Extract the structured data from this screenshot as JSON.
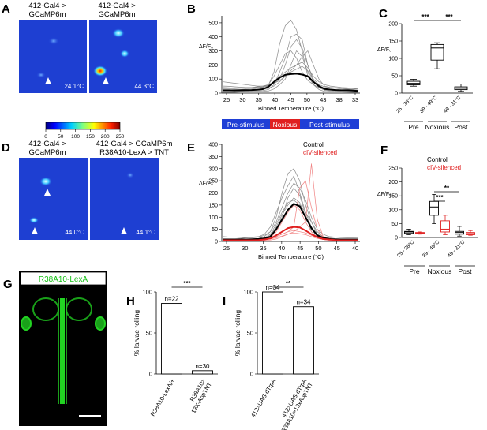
{
  "panels": {
    "A": {
      "letter": "A",
      "left_title": [
        "412-Gal4 >",
        "GCaMP6m"
      ],
      "right_title": [
        "412-Gal4 >",
        "GCaMP6m"
      ],
      "left_temp": "24.1°C",
      "right_temp": "44.3°C"
    },
    "colorbar": {
      "ticks": [
        "0",
        "50",
        "100",
        "150",
        "200",
        "250"
      ]
    },
    "B": {
      "letter": "B"
    },
    "C": {
      "letter": "C"
    },
    "D": {
      "letter": "D",
      "left_title": [
        "412-Gal4 >",
        "GCaMP6m"
      ],
      "right_title": [
        "412-Gal4 > GCaMP6m",
        "R38A10-LexA > TNT"
      ],
      "left_temp": "44.0°C",
      "right_temp": "44.1°C"
    },
    "E": {
      "letter": "E"
    },
    "F": {
      "letter": "F"
    },
    "G": {
      "letter": "G",
      "label": "R38A10-LexA"
    },
    "H": {
      "letter": "H"
    },
    "I": {
      "letter": "I"
    }
  },
  "stimulus_bar": {
    "segments": [
      {
        "label": "Pre-stimulus",
        "color": "#1f3fd6"
      },
      {
        "label": "Noxious",
        "color": "#e02020"
      },
      {
        "label": "Post-stimulus",
        "color": "#1f3fd6"
      }
    ]
  },
  "colors": {
    "control": "#000000",
    "silenced": "#e02020",
    "stimulus_blue": "#1f3fd6"
  },
  "chart_data": [
    {
      "panel": "B",
      "type": "line",
      "xlabel": "Binned Temperature (°C)",
      "ylabel": "ΔF/F₀",
      "x_ticks": [
        "25",
        "30",
        "35",
        "40",
        "45",
        "50",
        "43",
        "38",
        "33"
      ],
      "y_ticks": [
        "0",
        "100",
        "200",
        "300",
        "400",
        "500"
      ],
      "ylim": [
        0,
        550
      ],
      "series": [
        {
          "role": "mean",
          "values": [
            20,
            20,
            19,
            20,
            21,
            22,
            24,
            28,
            45,
            80,
            110,
            130,
            135,
            138,
            132,
            120,
            80,
            50,
            30,
            25,
            22,
            20,
            20,
            18,
            15
          ]
        },
        {
          "role": "individual",
          "values": [
            30,
            30,
            32,
            35,
            35,
            40,
            45,
            50,
            60,
            120,
            200,
            280,
            300,
            250,
            150,
            90,
            60,
            40,
            30,
            25,
            22,
            20,
            20,
            18,
            15
          ]
        },
        {
          "role": "individual",
          "values": [
            20,
            22,
            25,
            25,
            28,
            30,
            35,
            40,
            55,
            150,
            350,
            480,
            520,
            450,
            300,
            120,
            60,
            40,
            30,
            28,
            25,
            22,
            20,
            18,
            15
          ]
        },
        {
          "role": "individual",
          "values": [
            50,
            48,
            45,
            42,
            40,
            40,
            40,
            45,
            60,
            80,
            120,
            150,
            180,
            200,
            260,
            300,
            200,
            100,
            50,
            40,
            35,
            30,
            28,
            25,
            22
          ]
        },
        {
          "role": "individual",
          "values": [
            10,
            10,
            10,
            12,
            12,
            15,
            15,
            18,
            25,
            60,
            150,
            250,
            400,
            420,
            380,
            200,
            80,
            40,
            20,
            15,
            12,
            10,
            10,
            10,
            10
          ]
        },
        {
          "role": "individual",
          "values": [
            80,
            75,
            70,
            65,
            60,
            55,
            50,
            50,
            55,
            70,
            90,
            120,
            160,
            200,
            220,
            180,
            120,
            80,
            60,
            50,
            45,
            40,
            38,
            35,
            30
          ]
        },
        {
          "role": "individual",
          "values": [
            5,
            5,
            5,
            8,
            8,
            10,
            10,
            12,
            15,
            30,
            60,
            100,
            200,
            300,
            260,
            150,
            60,
            25,
            12,
            10,
            8,
            8,
            6,
            5,
            5
          ]
        },
        {
          "role": "individual",
          "values": [
            40,
            38,
            36,
            35,
            35,
            36,
            38,
            42,
            50,
            70,
            100,
            200,
            330,
            380,
            320,
            200,
            100,
            60,
            45,
            40,
            38,
            35,
            32,
            30,
            30
          ]
        },
        {
          "role": "individual",
          "values": [
            15,
            15,
            15,
            18,
            18,
            20,
            22,
            25,
            35,
            50,
            80,
            120,
            150,
            170,
            190,
            160,
            90,
            40,
            25,
            20,
            18,
            16,
            15,
            15,
            14
          ]
        }
      ]
    },
    {
      "panel": "C",
      "type": "box",
      "ylabel": "ΔF/F₀",
      "ylim": [
        0,
        200
      ],
      "y_ticks": [
        "0",
        "50",
        "100",
        "150",
        "200"
      ],
      "categories": [
        "25 - 38°C",
        "39 - 49°C",
        "48 - 31°C"
      ],
      "groups": [
        "Pre",
        "Noxious",
        "Post"
      ],
      "boxes": [
        {
          "color": "#000000",
          "min": 20,
          "q1": 24,
          "median": 28,
          "q3": 34,
          "max": 40
        },
        {
          "color": "#000000",
          "min": 70,
          "q1": 95,
          "median": 130,
          "q3": 140,
          "max": 145
        },
        {
          "color": "#000000",
          "min": 5,
          "q1": 10,
          "median": 14,
          "q3": 18,
          "max": 26
        }
      ],
      "significance": [
        {
          "from": 0,
          "to": 1,
          "label": "***"
        },
        {
          "from": 1,
          "to": 2,
          "label": "***"
        }
      ]
    },
    {
      "panel": "E",
      "type": "line",
      "xlabel": "Binned Temperature (°C)",
      "ylabel": "ΔF/F₀",
      "x_ticks": [
        "25",
        "30",
        "35",
        "40",
        "45",
        "50",
        "45",
        "40"
      ],
      "y_ticks": [
        "0",
        "50",
        "100",
        "150",
        "200",
        "250",
        "300",
        "350",
        "400"
      ],
      "ylim": [
        0,
        400
      ],
      "legend": [
        "Control",
        "cIV-silenced"
      ],
      "series": [
        {
          "role": "control-mean",
          "values": [
            8,
            8,
            8,
            8,
            8,
            9,
            10,
            12,
            20,
            50,
            90,
            130,
            155,
            145,
            100,
            55,
            25,
            15,
            10,
            8,
            8,
            8,
            8,
            8
          ]
        },
        {
          "role": "silenced-mean",
          "values": [
            5,
            5,
            5,
            5,
            5,
            5,
            6,
            8,
            12,
            25,
            40,
            55,
            60,
            58,
            45,
            30,
            18,
            10,
            8,
            6,
            5,
            5,
            5,
            5
          ]
        },
        {
          "role": "control",
          "values": [
            5,
            5,
            6,
            6,
            8,
            10,
            12,
            20,
            40,
            100,
            200,
            280,
            300,
            250,
            150,
            80,
            30,
            15,
            10,
            8,
            6,
            5,
            5,
            5
          ]
        },
        {
          "role": "control",
          "values": [
            10,
            10,
            10,
            12,
            15,
            18,
            20,
            30,
            60,
            120,
            180,
            230,
            270,
            200,
            120,
            60,
            30,
            20,
            15,
            12,
            10,
            10,
            10,
            10
          ]
        },
        {
          "role": "control",
          "values": [
            2,
            2,
            2,
            3,
            3,
            4,
            6,
            10,
            20,
            50,
            100,
            180,
            220,
            190,
            110,
            40,
            15,
            8,
            5,
            4,
            3,
            3,
            2,
            2
          ]
        },
        {
          "role": "control",
          "values": [
            20,
            18,
            18,
            16,
            15,
            15,
            18,
            25,
            40,
            80,
            140,
            200,
            240,
            220,
            170,
            100,
            50,
            30,
            20,
            18,
            16,
            15,
            15,
            14
          ]
        },
        {
          "role": "control",
          "values": [
            4,
            4,
            4,
            5,
            5,
            6,
            8,
            12,
            25,
            60,
            110,
            150,
            180,
            160,
            100,
            50,
            20,
            10,
            6,
            5,
            4,
            4,
            4,
            4
          ]
        },
        {
          "role": "control",
          "values": [
            6,
            6,
            7,
            7,
            8,
            8,
            10,
            15,
            30,
            70,
            120,
            160,
            170,
            150,
            120,
            80,
            40,
            20,
            10,
            8,
            7,
            6,
            6,
            6
          ]
        },
        {
          "role": "silenced",
          "values": [
            3,
            3,
            3,
            3,
            4,
            4,
            5,
            8,
            15,
            40,
            80,
            120,
            150,
            130,
            80,
            40,
            15,
            8,
            5,
            4,
            3,
            3,
            3,
            3
          ]
        },
        {
          "role": "silenced",
          "values": [
            4,
            4,
            4,
            4,
            4,
            5,
            6,
            8,
            10,
            20,
            30,
            40,
            60,
            220,
            250,
            140,
            50,
            15,
            8,
            5,
            4,
            4,
            4,
            4
          ]
        },
        {
          "role": "silenced",
          "values": [
            8,
            8,
            8,
            8,
            8,
            8,
            9,
            10,
            14,
            20,
            30,
            40,
            45,
            40,
            35,
            25,
            15,
            10,
            9,
            8,
            8,
            8,
            8,
            8
          ]
        },
        {
          "role": "silenced",
          "values": [
            2,
            2,
            2,
            2,
            2,
            3,
            3,
            4,
            6,
            10,
            20,
            30,
            40,
            60,
            80,
            320,
            90,
            20,
            6,
            4,
            3,
            2,
            2,
            2
          ]
        },
        {
          "role": "silenced",
          "values": [
            5,
            5,
            5,
            5,
            5,
            5,
            6,
            7,
            10,
            15,
            22,
            30,
            35,
            32,
            28,
            20,
            12,
            8,
            6,
            5,
            5,
            5,
            5,
            5
          ]
        }
      ]
    },
    {
      "panel": "F",
      "type": "box",
      "ylabel": "ΔF/F₀",
      "ylim": [
        0,
        250
      ],
      "y_ticks": [
        "0",
        "50",
        "100",
        "150",
        "200",
        "250"
      ],
      "categories": [
        "25 - 38°C",
        "39 - 49°C",
        "49 - 31°C"
      ],
      "groups": [
        "Pre",
        "Noxious",
        "Post"
      ],
      "legend": [
        "Control",
        "cIV-silenced"
      ],
      "boxes": [
        {
          "cat": 0,
          "color": "#000000",
          "min": 10,
          "q1": 15,
          "median": 20,
          "q3": 22,
          "max": 30
        },
        {
          "cat": 0,
          "color": "#e02020",
          "min": 12,
          "q1": 14,
          "median": 16,
          "q3": 18,
          "max": 20
        },
        {
          "cat": 1,
          "color": "#000000",
          "min": 50,
          "q1": 80,
          "median": 110,
          "q3": 130,
          "max": 155
        },
        {
          "cat": 1,
          "color": "#e02020",
          "min": 10,
          "q1": 20,
          "median": 30,
          "q3": 60,
          "max": 80
        },
        {
          "cat": 2,
          "color": "#000000",
          "min": 5,
          "q1": 12,
          "median": 18,
          "q3": 22,
          "max": 40
        },
        {
          "cat": 2,
          "color": "#e02020",
          "min": 8,
          "q1": 10,
          "median": 14,
          "q3": 18,
          "max": 25
        }
      ],
      "significance": [
        {
          "label": "***",
          "from_cat": 1,
          "from_box": 0,
          "to_cat": 1,
          "to_box": 1
        },
        {
          "label": "**",
          "from_cat": 1,
          "from_box": 0,
          "to_cat": 2,
          "to_box": 0
        }
      ]
    },
    {
      "panel": "H",
      "type": "bar",
      "ylabel": "% larvae rolling",
      "ylim": [
        0,
        100
      ],
      "y_ticks": [
        "0",
        "50",
        "100"
      ],
      "categories": [
        "R38A10-LexA/+",
        "R38A10>\n13X-AopTNT"
      ],
      "values": [
        86,
        4
      ],
      "n_labels": [
        "n=22",
        "n=30"
      ],
      "significance": [
        {
          "from": 0,
          "to": 1,
          "label": "***"
        }
      ]
    },
    {
      "panel": "I",
      "type": "bar",
      "ylabel": "% larvae rolling",
      "ylim": [
        0,
        100
      ],
      "y_ticks": [
        "0",
        "50",
        "100"
      ],
      "categories": [
        "412>UAS-dTrpA",
        "412>UAS-dTrpA\nR38A10>13xAopTNT"
      ],
      "values": [
        100,
        82
      ],
      "n_labels": [
        "n=34",
        "n=34"
      ],
      "significance": [
        {
          "from": 0,
          "to": 1,
          "label": "**"
        }
      ]
    }
  ]
}
